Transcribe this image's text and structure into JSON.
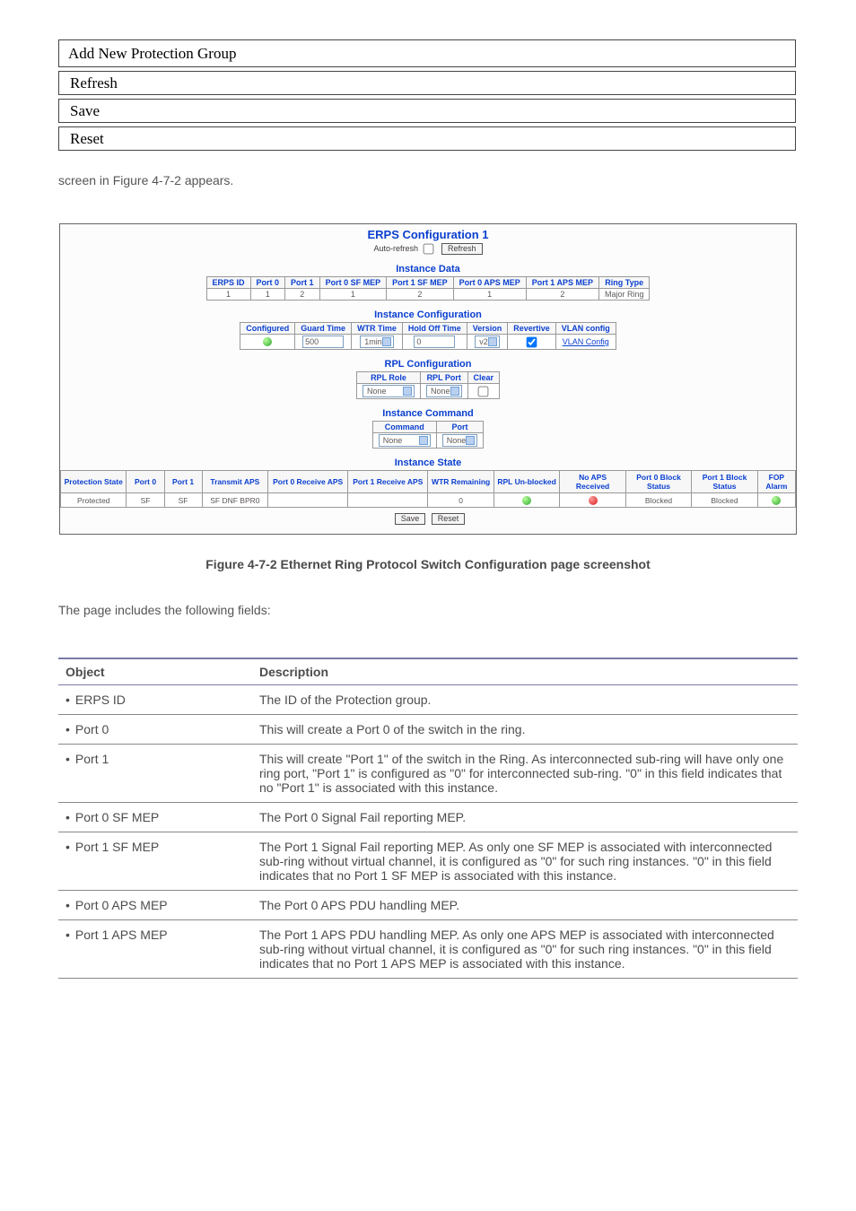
{
  "buttons": {
    "add": "Add New Protection Group",
    "refresh": "Refresh",
    "save": "Save",
    "reset": "Reset"
  },
  "intro": "screen in Figure 4-7-2 appears.",
  "config": {
    "title": "ERPS Configuration 1",
    "auto_label": "Auto-refresh",
    "refresh_btn": "Refresh",
    "instance_data_title": "Instance Data",
    "instance_data": {
      "headers": [
        "ERPS ID",
        "Port 0",
        "Port 1",
        "Port 0 SF MEP",
        "Port 1 SF MEP",
        "Port 0 APS MEP",
        "Port 1 APS MEP",
        "Ring Type"
      ],
      "row": [
        "1",
        "1",
        "2",
        "1",
        "2",
        "1",
        "2",
        "Major Ring"
      ]
    },
    "instance_cfg_title": "Instance Configuration",
    "instance_cfg": {
      "headers": [
        "Configured",
        "Guard Time",
        "WTR Time",
        "Hold Off Time",
        "Version",
        "Revertive",
        "VLAN config"
      ],
      "guard_time_val": "500",
      "wtr_time_val": "1min",
      "hold_off_val": "0",
      "version_val": "v2",
      "revertive_checked": true,
      "vlan_link": "VLAN Config"
    },
    "rpl_title": "RPL Configuration",
    "rpl": {
      "headers": [
        "RPL Role",
        "RPL Port",
        "Clear"
      ],
      "role_val": "None",
      "port_val": "None"
    },
    "command_title": "Instance Command",
    "command": {
      "headers": [
        "Command",
        "Port"
      ],
      "cmd_val": "None",
      "port_val": "None"
    },
    "state_title": "Instance State",
    "state": {
      "headers": [
        "Protection State",
        "Port 0",
        "Port 1",
        "Transmit APS",
        "Port 0 Receive APS",
        "Port 1 Receive APS",
        "WTR Remaining",
        "RPL Un-blocked",
        "No APS Received",
        "Port 0 Block Status",
        "Port 1 Block Status",
        "FOP Alarm"
      ],
      "row": {
        "prot_state": "Protected",
        "port0": "SF",
        "port1": "SF",
        "tx_aps": "SF DNF BPR0",
        "rx0": "",
        "rx1": "",
        "wtr": "0",
        "rpl_led": "green",
        "noaps_led": "red",
        "p0_block": "Blocked",
        "p1_block": "Blocked",
        "fop_led": "green"
      }
    },
    "save_btn": "Save",
    "reset_btn": "Reset"
  },
  "figure_caption": "Figure 4-7-2 Ethernet Ring Protocol Switch Configuration page screenshot",
  "desc_intro": "The page includes the following fields:",
  "desc": {
    "head_obj": "Object",
    "head_desc": "Description",
    "rows": [
      {
        "o": "ERPS ID",
        "d": "The ID of the Protection group."
      },
      {
        "o": "Port 0",
        "d": "This will create a Port 0 of the switch in the ring."
      },
      {
        "o": "Port 1",
        "d": "This will create \"Port 1\" of the switch in the Ring. As interconnected sub-ring will have only one ring port, \"Port 1\" is configured as \"0\" for interconnected sub-ring. \"0\" in this field indicates that no \"Port 1\" is associated with this instance."
      },
      {
        "o": "Port 0 SF MEP",
        "d": "The Port 0 Signal Fail reporting MEP."
      },
      {
        "o": "Port 1 SF MEP",
        "d": "The Port 1 Signal Fail reporting MEP. As only one SF MEP is associated with interconnected sub-ring without virtual channel, it is configured as \"0\" for such ring instances. \"0\" in this field indicates that no Port 1 SF MEP is associated with this instance."
      },
      {
        "o": "Port 0 APS MEP",
        "d": "The Port 0 APS PDU handling MEP."
      },
      {
        "o": "Port 1 APS MEP",
        "d": "The Port 1 APS PDU handling MEP. As only one APS MEP is associated with interconnected sub-ring without virtual channel, it is configured as \"0\" for such ring instances. \"0\" in this field indicates that no Port 1 APS MEP is associated with this instance."
      }
    ]
  },
  "colors": {
    "accent": "#0a3fcf",
    "border": "#999999",
    "led_green": "#2da52d",
    "led_red": "#d81e1e"
  }
}
